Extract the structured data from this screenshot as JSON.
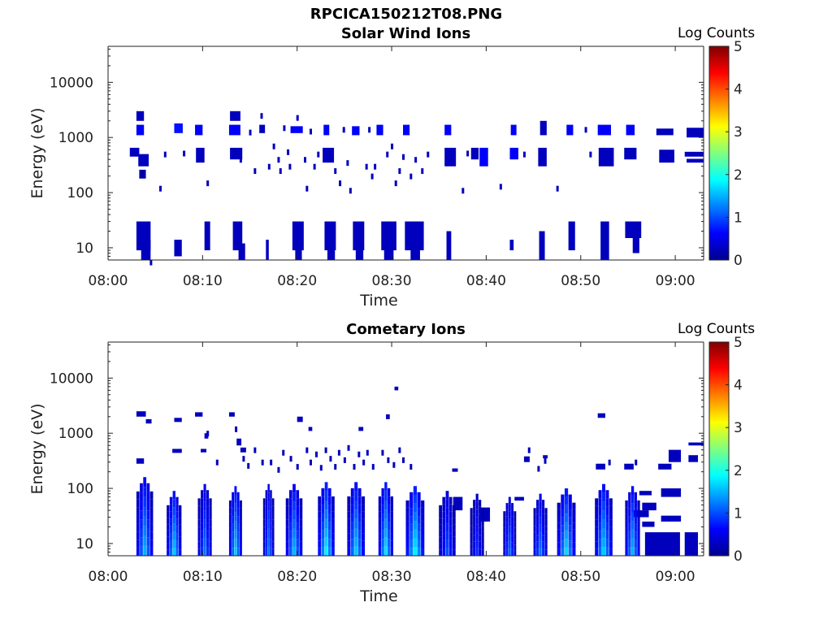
{
  "figure": {
    "title": "RPCICA150212T08.PNG"
  },
  "colors": {
    "colormap": "jet",
    "axis": "#222222",
    "background": "#ffffff"
  },
  "chart_data": [
    {
      "type": "heatmap",
      "title": "Solar Wind Ions",
      "xlabel": "Time",
      "ylabel": "Energy (eV)",
      "yscale": "log",
      "ylim": [
        6,
        45000
      ],
      "xlim_minutes": [
        0,
        63
      ],
      "xticks": [
        "08:00",
        "08:10",
        "08:20",
        "08:30",
        "08:40",
        "08:50",
        "09:00"
      ],
      "yticks": [
        "10",
        "100",
        "1000",
        "10000"
      ],
      "colorbar": {
        "label": "Log Counts",
        "range": [
          0,
          5
        ],
        "ticks": [
          "0",
          "1",
          "2",
          "3",
          "4",
          "5"
        ]
      },
      "cells": [
        [
          3.0,
          3.8,
          2000,
          3000,
          0.3
        ],
        [
          3.0,
          3.8,
          1100,
          1700,
          0.6
        ],
        [
          2.3,
          3.3,
          450,
          650,
          0.3
        ],
        [
          3.2,
          4.3,
          300,
          500,
          0.3
        ],
        [
          3.3,
          4.0,
          180,
          260,
          0.2
        ],
        [
          3.0,
          4.5,
          9,
          30,
          0.3
        ],
        [
          3.5,
          4.5,
          6,
          14,
          0.3
        ],
        [
          7.0,
          7.8,
          7,
          14,
          0.3
        ],
        [
          7.0,
          7.9,
          1200,
          1800,
          0.7
        ],
        [
          9.2,
          10.0,
          1100,
          1700,
          0.6
        ],
        [
          9.3,
          10.2,
          350,
          650,
          0.3
        ],
        [
          10.2,
          10.8,
          9,
          30,
          0.3
        ],
        [
          12.9,
          14.0,
          2000,
          3000,
          0.3
        ],
        [
          12.8,
          14.0,
          1100,
          1700,
          0.6
        ],
        [
          12.9,
          14.2,
          400,
          650,
          0.3
        ],
        [
          13.2,
          14.2,
          9,
          30,
          0.3
        ],
        [
          13.8,
          14.5,
          6,
          12,
          0.3
        ],
        [
          16.0,
          16.6,
          1200,
          1700,
          0.3
        ],
        [
          16.7,
          17.0,
          6,
          14,
          0.3
        ],
        [
          19.3,
          20.6,
          1200,
          1600,
          0.6
        ],
        [
          19.5,
          20.7,
          9,
          30,
          0.3
        ],
        [
          19.8,
          20.5,
          6,
          12,
          0.3
        ],
        [
          22.8,
          23.4,
          1100,
          1700,
          0.6
        ],
        [
          22.7,
          23.9,
          350,
          650,
          0.3
        ],
        [
          22.9,
          24.1,
          9,
          30,
          0.3
        ],
        [
          23.2,
          24.0,
          6,
          14,
          0.3
        ],
        [
          25.8,
          26.6,
          1100,
          1600,
          0.6
        ],
        [
          25.9,
          27.1,
          9,
          30,
          0.3
        ],
        [
          26.2,
          27.0,
          6,
          12,
          0.3
        ],
        [
          28.4,
          29.1,
          1100,
          1700,
          0.6
        ],
        [
          28.9,
          30.5,
          9,
          30,
          0.3
        ],
        [
          29.2,
          30.2,
          6,
          14,
          0.3
        ],
        [
          31.2,
          31.9,
          1100,
          1700,
          0.6
        ],
        [
          31.4,
          33.4,
          9,
          30,
          0.3
        ],
        [
          32.0,
          33.0,
          6,
          14,
          0.3
        ],
        [
          35.6,
          36.3,
          1100,
          1700,
          0.6
        ],
        [
          35.6,
          36.8,
          300,
          650,
          0.3
        ],
        [
          35.8,
          36.3,
          6,
          20,
          0.3
        ],
        [
          38.4,
          39.2,
          400,
          650,
          0.3
        ],
        [
          39.3,
          40.2,
          300,
          650,
          0.6
        ],
        [
          42.6,
          43.2,
          1100,
          1700,
          0.6
        ],
        [
          42.5,
          43.4,
          400,
          650,
          0.6
        ],
        [
          42.5,
          42.9,
          9,
          14,
          0.3
        ],
        [
          45.7,
          46.4,
          1100,
          2000,
          0.3
        ],
        [
          45.5,
          46.4,
          300,
          650,
          0.3
        ],
        [
          45.6,
          46.2,
          6,
          20,
          0.3
        ],
        [
          48.5,
          49.2,
          1100,
          1700,
          0.6
        ],
        [
          48.7,
          49.4,
          9,
          30,
          0.3
        ],
        [
          51.8,
          53.2,
          1100,
          1700,
          0.6
        ],
        [
          51.9,
          53.5,
          300,
          650,
          0.3
        ],
        [
          52.1,
          53.0,
          6,
          30,
          0.3
        ],
        [
          54.8,
          55.7,
          1100,
          1700,
          0.6
        ],
        [
          54.6,
          55.9,
          400,
          650,
          0.3
        ],
        [
          54.7,
          56.4,
          15,
          30,
          0.3
        ],
        [
          55.5,
          56.2,
          8,
          15,
          0.3
        ],
        [
          58.0,
          59.8,
          1100,
          1450,
          0.3
        ],
        [
          58.3,
          59.9,
          350,
          600,
          0.3
        ],
        [
          61.2,
          63.0,
          1000,
          1500,
          0.3
        ],
        [
          61.0,
          63.0,
          450,
          550,
          0.3
        ],
        [
          61.2,
          63.0,
          350,
          410,
          0.3
        ]
      ],
      "scatter_cells": [
        [
          4.5,
          5.5,
          0.3
        ],
        [
          5.5,
          120,
          0.3
        ],
        [
          6.0,
          500,
          0.3
        ],
        [
          8.0,
          520,
          0.3
        ],
        [
          10.5,
          150,
          0.3
        ],
        [
          14.0,
          400,
          0.3
        ],
        [
          15.0,
          1250,
          0.3
        ],
        [
          15.5,
          250,
          0.3
        ],
        [
          16.2,
          2500,
          0.3
        ],
        [
          17.0,
          300,
          0.3
        ],
        [
          17.5,
          700,
          0.3
        ],
        [
          18.0,
          400,
          0.3
        ],
        [
          18.2,
          250,
          0.3
        ],
        [
          18.6,
          1500,
          0.3
        ],
        [
          19.0,
          550,
          0.3
        ],
        [
          19.2,
          300,
          0.3
        ],
        [
          20.0,
          2300,
          0.3
        ],
        [
          20.8,
          400,
          0.3
        ],
        [
          21.0,
          120,
          0.3
        ],
        [
          21.4,
          1300,
          0.3
        ],
        [
          21.8,
          300,
          0.3
        ],
        [
          22.2,
          500,
          0.3
        ],
        [
          24.0,
          250,
          0.3
        ],
        [
          24.5,
          150,
          0.3
        ],
        [
          24.9,
          1400,
          0.3
        ],
        [
          25.3,
          350,
          0.3
        ],
        [
          25.6,
          110,
          0.3
        ],
        [
          27.3,
          300,
          0.3
        ],
        [
          27.6,
          1400,
          0.3
        ],
        [
          27.9,
          200,
          0.3
        ],
        [
          28.2,
          300,
          0.3
        ],
        [
          29.5,
          500,
          0.3
        ],
        [
          30.0,
          700,
          0.3
        ],
        [
          30.4,
          150,
          0.3
        ],
        [
          30.8,
          250,
          0.3
        ],
        [
          31.2,
          450,
          0.3
        ],
        [
          32.0,
          200,
          0.3
        ],
        [
          32.5,
          400,
          0.3
        ],
        [
          33.2,
          250,
          0.3
        ],
        [
          33.8,
          500,
          0.3
        ],
        [
          37.5,
          110,
          0.3
        ],
        [
          38.0,
          520,
          0.3
        ],
        [
          41.5,
          130,
          0.3
        ],
        [
          44.0,
          500,
          0.3
        ],
        [
          47.5,
          120,
          0.3
        ],
        [
          50.5,
          1400,
          0.3
        ],
        [
          51.0,
          500,
          0.3
        ]
      ]
    },
    {
      "type": "heatmap",
      "title": "Cometary Ions",
      "xlabel": "Time",
      "ylabel": "Energy (eV)",
      "yscale": "log",
      "ylim": [
        6,
        45000
      ],
      "xlim_minutes": [
        0,
        63
      ],
      "xticks": [
        "08:00",
        "08:10",
        "08:20",
        "08:30",
        "08:40",
        "08:50",
        "09:00"
      ],
      "yticks": [
        "10",
        "100",
        "1000",
        "10000"
      ],
      "colorbar": {
        "label": "Log Counts",
        "range": [
          0,
          5
        ],
        "ticks": [
          "0",
          "1",
          "2",
          "3",
          "4",
          "5"
        ]
      },
      "spikes": [
        {
          "t0": 3.0,
          "t1": 4.8,
          "top": 160,
          "peak": 1.5
        },
        {
          "t0": 6.2,
          "t1": 7.8,
          "top": 90,
          "peak": 1.6
        },
        {
          "t0": 9.5,
          "t1": 11.0,
          "top": 120,
          "peak": 1.2
        },
        {
          "t0": 12.8,
          "t1": 14.2,
          "top": 110,
          "peak": 1.6
        },
        {
          "t0": 16.4,
          "t1": 17.6,
          "top": 120,
          "peak": 1.2
        },
        {
          "t0": 18.8,
          "t1": 20.6,
          "top": 120,
          "peak": 1.5
        },
        {
          "t0": 22.2,
          "t1": 24.0,
          "top": 130,
          "peak": 1.8
        },
        {
          "t0": 25.3,
          "t1": 27.2,
          "top": 130,
          "peak": 1.6
        },
        {
          "t0": 28.6,
          "t1": 30.2,
          "top": 130,
          "peak": 1.7
        },
        {
          "t0": 31.5,
          "t1": 33.5,
          "top": 110,
          "peak": 1.8
        },
        {
          "t0": 35.0,
          "t1": 36.8,
          "top": 90,
          "peak": 1.0
        },
        {
          "t0": 38.3,
          "t1": 39.8,
          "top": 80,
          "peak": 0.8
        },
        {
          "t0": 41.8,
          "t1": 43.2,
          "top": 70,
          "peak": 1.1
        },
        {
          "t0": 45.0,
          "t1": 46.5,
          "top": 80,
          "peak": 1.2
        },
        {
          "t0": 47.5,
          "t1": 49.5,
          "top": 100,
          "peak": 1.7
        },
        {
          "t0": 51.5,
          "t1": 53.4,
          "top": 120,
          "peak": 1.6
        },
        {
          "t0": 54.7,
          "t1": 56.3,
          "top": 110,
          "peak": 1.5
        }
      ],
      "cells": [
        [
          3.0,
          4.0,
          2000,
          2500,
          0.3
        ],
        [
          3.0,
          3.8,
          280,
          350,
          0.3
        ],
        [
          4.0,
          4.6,
          1500,
          1800,
          0.3
        ],
        [
          6.8,
          7.8,
          440,
          520,
          0.3
        ],
        [
          7.0,
          7.8,
          1600,
          1900,
          0.3
        ],
        [
          9.2,
          10.0,
          2000,
          2400,
          0.3
        ],
        [
          9.8,
          10.4,
          450,
          520,
          0.3
        ],
        [
          10.2,
          10.6,
          800,
          1000,
          0.3
        ],
        [
          12.8,
          13.4,
          2000,
          2400,
          0.3
        ],
        [
          13.6,
          14.1,
          600,
          800,
          0.3
        ],
        [
          14.0,
          14.6,
          450,
          550,
          0.3
        ],
        [
          20.0,
          20.6,
          1600,
          2000,
          0.3
        ],
        [
          21.2,
          21.6,
          1100,
          1300,
          0.3
        ],
        [
          26.5,
          27.0,
          1100,
          1300,
          0.3
        ],
        [
          29.4,
          29.8,
          1800,
          2200,
          0.3
        ],
        [
          30.3,
          30.7,
          6000,
          7000,
          0.3
        ],
        [
          36.4,
          37.0,
          200,
          230,
          0.3
        ],
        [
          44.0,
          44.6,
          300,
          380,
          0.3
        ],
        [
          46.0,
          46.5,
          350,
          400,
          0.3
        ],
        [
          51.8,
          52.6,
          1900,
          2300,
          0.3
        ],
        [
          51.6,
          52.6,
          220,
          280,
          0.3
        ],
        [
          54.6,
          55.6,
          220,
          280,
          0.3
        ],
        [
          59.3,
          60.6,
          300,
          500,
          0.3
        ],
        [
          58.2,
          59.6,
          220,
          280,
          0.3
        ],
        [
          61.4,
          63.0,
          600,
          680,
          0.3
        ],
        [
          61.4,
          62.4,
          300,
          400,
          0.3
        ],
        [
          58.5,
          60.6,
          70,
          100,
          0.3
        ],
        [
          58.5,
          60.6,
          25,
          32,
          0.3
        ],
        [
          56.2,
          57.5,
          75,
          90,
          0.3
        ],
        [
          56.5,
          58.0,
          40,
          55,
          0.3
        ],
        [
          56.8,
          60.5,
          6,
          16,
          0.3
        ],
        [
          61.0,
          62.4,
          6,
          16,
          0.3
        ],
        [
          55.4,
          57.2,
          30,
          40,
          0.3
        ],
        [
          56.5,
          57.8,
          20,
          25,
          0.3
        ],
        [
          36.5,
          37.5,
          40,
          70,
          0.3
        ],
        [
          39.4,
          40.4,
          25,
          45,
          0.3
        ],
        [
          43.0,
          44.0,
          60,
          70,
          0.3
        ]
      ],
      "scatter_cells": [
        [
          10.5,
          1000,
          0.3
        ],
        [
          11.5,
          300,
          0.3
        ],
        [
          13.5,
          1200,
          0.3
        ],
        [
          14.3,
          350,
          0.3
        ],
        [
          14.8,
          260,
          0.3
        ],
        [
          15.5,
          500,
          0.3
        ],
        [
          16.3,
          300,
          0.3
        ],
        [
          17.2,
          300,
          0.3
        ],
        [
          18.0,
          220,
          0.3
        ],
        [
          18.5,
          450,
          0.3
        ],
        [
          19.3,
          350,
          0.3
        ],
        [
          20.0,
          250,
          0.3
        ],
        [
          21.0,
          500,
          0.3
        ],
        [
          21.4,
          300,
          0.3
        ],
        [
          22.0,
          420,
          0.3
        ],
        [
          22.5,
          240,
          0.3
        ],
        [
          23.0,
          500,
          0.3
        ],
        [
          23.5,
          350,
          0.3
        ],
        [
          24.0,
          250,
          0.3
        ],
        [
          24.4,
          450,
          0.3
        ],
        [
          25.0,
          330,
          0.3
        ],
        [
          25.4,
          550,
          0.3
        ],
        [
          26.0,
          250,
          0.3
        ],
        [
          26.5,
          420,
          0.3
        ],
        [
          27.0,
          300,
          0.3
        ],
        [
          27.4,
          450,
          0.3
        ],
        [
          28.0,
          250,
          0.3
        ],
        [
          29.0,
          450,
          0.3
        ],
        [
          29.6,
          330,
          0.3
        ],
        [
          30.2,
          270,
          0.3
        ],
        [
          30.8,
          500,
          0.3
        ],
        [
          31.2,
          330,
          0.3
        ],
        [
          32.0,
          250,
          0.3
        ],
        [
          44.5,
          500,
          0.3
        ],
        [
          45.5,
          230,
          0.3
        ],
        [
          46.2,
          320,
          0.3
        ],
        [
          53.0,
          300,
          0.3
        ],
        [
          55.8,
          300,
          0.3
        ]
      ]
    }
  ]
}
